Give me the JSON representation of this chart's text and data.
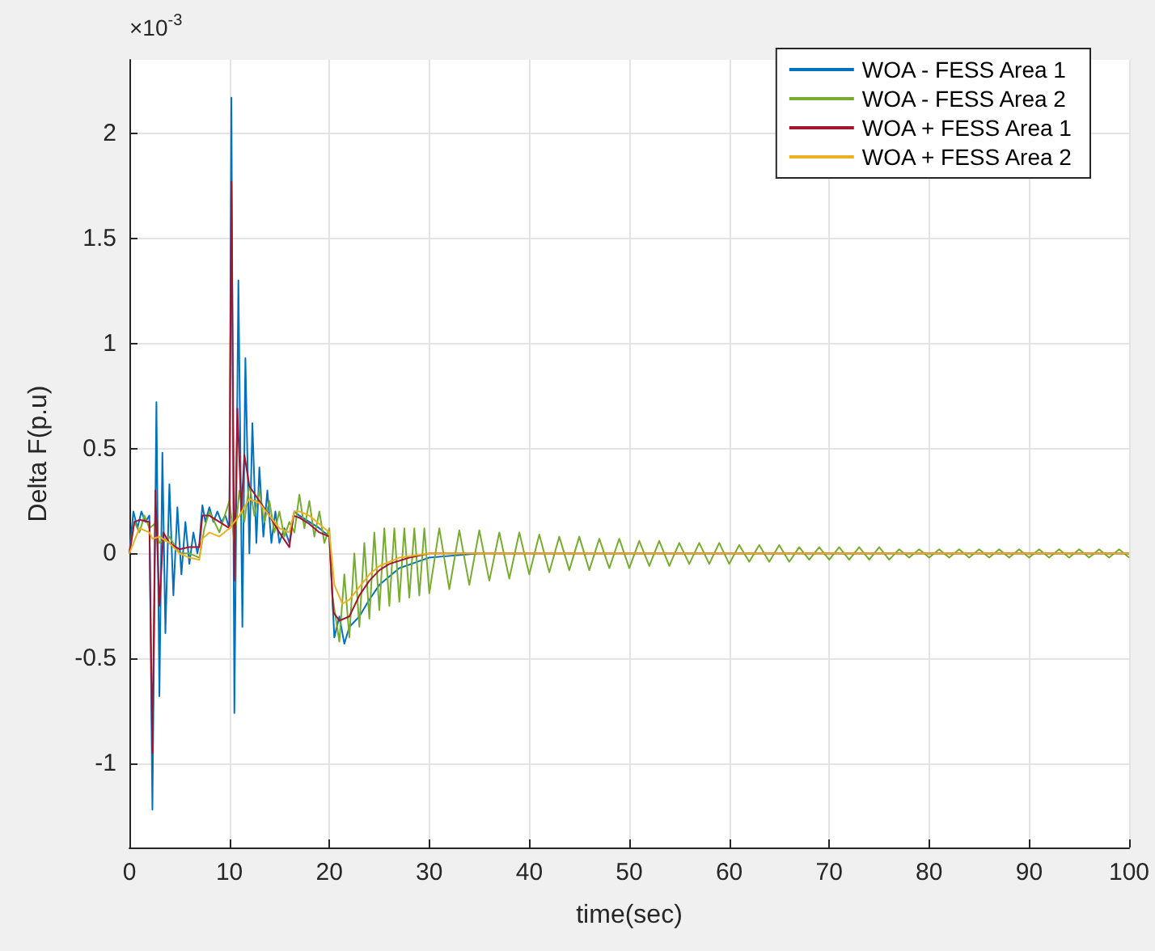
{
  "chart_data": {
    "type": "line",
    "xlabel": "time(sec)",
    "ylabel": "Delta F(p.u)",
    "annotations": [
      "×10$^{-3}$"
    ],
    "xlim": [
      0,
      100
    ],
    "xticks": [
      0,
      10,
      20,
      30,
      40,
      50,
      60,
      70,
      80,
      90,
      100
    ],
    "ylim": [
      -1.4,
      2.35
    ],
    "yticks": [
      -1,
      -0.5,
      0,
      0.5,
      1,
      1.5,
      2
    ],
    "grid": true,
    "legend": "top right",
    "series": [
      {
        "name": "WOA - FESS Area 1",
        "color": "#0072bd",
        "x": [
          0,
          0.4,
          0.8,
          1.2,
          1.6,
          2,
          2.3,
          2.7,
          3.0,
          3.3,
          3.6,
          4,
          4.4,
          4.8,
          5.2,
          5.6,
          6,
          6.4,
          6.8,
          7,
          7.3,
          7.6,
          8,
          8.4,
          8.8,
          9.2,
          9.6,
          10,
          10.2,
          10.5,
          10.9,
          11.3,
          11.6,
          12,
          12.3,
          12.7,
          13,
          13.4,
          13.8,
          14.2,
          14.6,
          15,
          15.5,
          16,
          16.5,
          17,
          18,
          19,
          20,
          20.5,
          21,
          21.5,
          22,
          23,
          24,
          25,
          27,
          30,
          35,
          100
        ],
        "values": [
          0,
          0.2,
          0.12,
          0.2,
          0.15,
          0.18,
          -1.22,
          0.72,
          -0.68,
          0.48,
          -0.38,
          0.33,
          -0.2,
          0.22,
          -0.1,
          0.15,
          -0.05,
          0.1,
          0,
          0.05,
          0.23,
          0.15,
          0.22,
          0.15,
          0.2,
          0.15,
          0.18,
          0.12,
          2.17,
          -0.76,
          1.3,
          -0.35,
          0.93,
          0,
          0.62,
          0.05,
          0.41,
          0.08,
          0.3,
          0.05,
          0.2,
          0.05,
          0.12,
          0.05,
          0.2,
          0.18,
          0.15,
          0.12,
          0.08,
          -0.4,
          -0.3,
          -0.43,
          -0.35,
          -0.3,
          -0.22,
          -0.15,
          -0.07,
          -0.02,
          0,
          0
        ]
      },
      {
        "name": "WOA - FESS Area 2",
        "color": "#77ac30",
        "x": [
          0,
          0.5,
          1,
          1.5,
          2,
          2.5,
          3,
          4,
          5,
          6,
          7,
          7.5,
          8,
          9,
          10,
          10.5,
          11,
          11.5,
          12,
          12.5,
          13,
          13.5,
          14,
          14.5,
          15,
          15.5,
          16,
          16.5,
          17,
          17.5,
          18,
          18.5,
          19,
          19.5,
          20,
          20.3,
          21,
          21.5,
          22,
          22.5,
          23,
          23.5,
          24,
          24.5,
          25,
          25.5,
          26,
          26.5,
          27,
          27.5,
          28,
          28.5,
          29,
          29.5,
          30,
          31,
          32,
          33,
          34,
          35,
          36,
          37,
          38,
          39,
          40,
          41,
          42,
          43,
          44,
          45,
          46,
          47,
          48,
          49,
          50,
          51,
          52,
          53,
          54,
          55,
          56,
          57,
          58,
          59,
          60,
          61,
          62,
          63,
          64,
          65,
          66,
          67,
          68,
          69,
          70,
          71,
          72,
          73,
          74,
          75,
          76,
          77,
          78,
          79,
          80,
          81,
          82,
          83,
          84,
          85,
          86,
          87,
          88,
          89,
          90,
          91,
          92,
          93,
          94,
          95,
          96,
          97,
          98,
          99,
          100
        ],
        "values": [
          0,
          0.15,
          0.1,
          0.18,
          0.12,
          0.14,
          0.05,
          0.08,
          0,
          0,
          -0.02,
          0.12,
          0.2,
          0.1,
          0.25,
          0.05,
          0.3,
          0.15,
          0.33,
          0.18,
          0.3,
          0.15,
          0.25,
          0.1,
          0.2,
          0.08,
          0.15,
          0.1,
          0.28,
          0.12,
          0.25,
          0.08,
          0.2,
          0.05,
          0.12,
          -0.2,
          -0.42,
          -0.1,
          -0.4,
          0,
          -0.35,
          0.05,
          -0.31,
          0.1,
          -0.27,
          0.12,
          -0.25,
          0.12,
          -0.23,
          0.12,
          -0.21,
          0.12,
          -0.2,
          0.12,
          -0.19,
          0.12,
          -0.17,
          0.11,
          -0.15,
          0.11,
          -0.13,
          0.1,
          -0.12,
          0.1,
          -0.1,
          0.09,
          -0.09,
          0.08,
          -0.08,
          0.08,
          -0.08,
          0.07,
          -0.07,
          0.07,
          -0.07,
          0.06,
          -0.06,
          0.06,
          -0.06,
          0.05,
          -0.05,
          0.05,
          -0.05,
          0.05,
          -0.05,
          0.04,
          -0.04,
          0.04,
          -0.04,
          0.04,
          -0.04,
          0.03,
          -0.03,
          0.03,
          -0.03,
          0.03,
          -0.03,
          0.03,
          -0.03,
          0.03,
          -0.03,
          0.02,
          -0.02,
          0.02,
          -0.02,
          0.02,
          -0.02,
          0.02,
          -0.02,
          0.02,
          -0.02,
          0.02,
          -0.02,
          0.02,
          -0.02,
          0.02,
          -0.02,
          0.02,
          -0.02,
          0.02,
          -0.02,
          0.02,
          -0.02,
          0.02,
          -0.02
        ]
      },
      {
        "name": "WOA + FESS Area 1",
        "color": "#a2142f",
        "x": [
          0,
          0.5,
          1,
          2,
          2.3,
          2.6,
          3,
          3.4,
          4,
          5,
          6,
          7,
          7.3,
          8,
          9,
          10,
          10.2,
          10.5,
          10.8,
          11.2,
          11.5,
          12,
          13,
          14,
          15,
          16,
          16.4,
          17,
          18,
          19,
          20,
          20.4,
          21,
          22,
          23,
          24,
          25,
          26,
          28,
          30,
          100
        ],
        "values": [
          0,
          0.15,
          0.16,
          0.15,
          -0.95,
          0.3,
          -0.25,
          0.1,
          0.05,
          0.02,
          0.03,
          0.03,
          0.18,
          0.18,
          0.15,
          0.12,
          1.77,
          -0.13,
          0.69,
          0.2,
          0.47,
          0.32,
          0.25,
          0.18,
          0.1,
          0.03,
          0.18,
          0.17,
          0.14,
          0.1,
          0.08,
          -0.28,
          -0.32,
          -0.3,
          -0.2,
          -0.13,
          -0.08,
          -0.05,
          -0.02,
          0,
          0
        ]
      },
      {
        "name": "WOA + FESS Area 2",
        "color": "#edb120",
        "x": [
          0,
          1,
          2,
          2.3,
          3,
          4,
          5,
          6,
          7,
          7.3,
          8,
          9,
          10,
          11,
          12,
          13,
          14,
          15,
          16,
          16.5,
          17,
          18,
          19,
          20,
          20.5,
          21.3,
          22,
          23,
          24,
          25,
          27,
          30,
          100
        ],
        "values": [
          0,
          0.12,
          0.1,
          0.07,
          0.08,
          0.05,
          0,
          -0.02,
          -0.03,
          0.07,
          0.1,
          0.08,
          0.12,
          0.18,
          0.26,
          0.24,
          0.18,
          0.12,
          0.1,
          0.2,
          0.2,
          0.18,
          0.14,
          0.1,
          -0.15,
          -0.24,
          -0.22,
          -0.16,
          -0.1,
          -0.06,
          -0.02,
          0,
          0
        ]
      }
    ]
  }
}
